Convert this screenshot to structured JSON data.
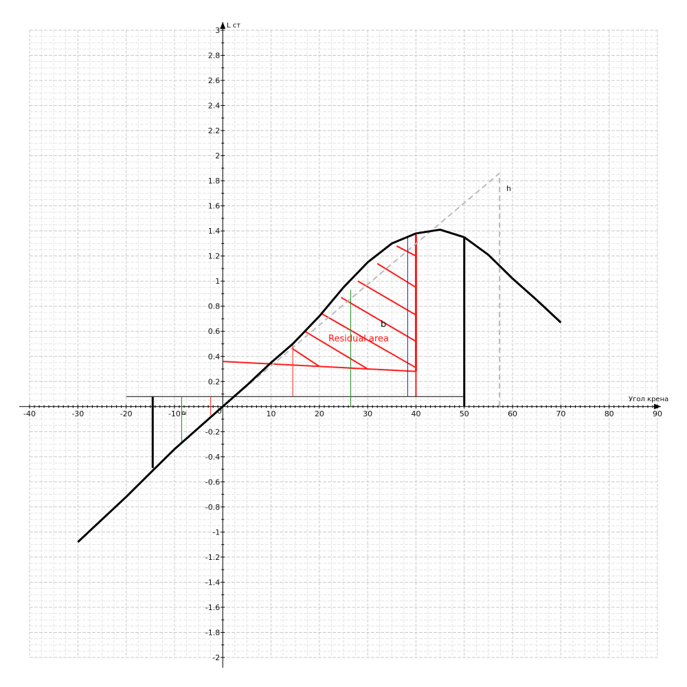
{
  "chart_data": {
    "type": "line",
    "xlabel": "Угол крена",
    "ylabel": "L ст",
    "xlim": [
      -40,
      90
    ],
    "ylim": [
      -2,
      3
    ],
    "x_ticks": [
      -40,
      -30,
      -20,
      -10,
      0,
      10,
      20,
      30,
      40,
      50,
      60,
      70,
      80,
      90
    ],
    "y_ticks": [
      -2,
      -1.8,
      -1.6,
      -1.4,
      -1.2,
      -1,
      -0.8,
      -0.6,
      -0.4,
      -0.2,
      0.2,
      0.4,
      0.6,
      0.8,
      1,
      1.2,
      1.4,
      1.6,
      1.8,
      2,
      2.2,
      2.4,
      2.6,
      2.8,
      3
    ],
    "grid": true,
    "series": [
      {
        "color": "#000000",
        "x": [
          -30,
          -20,
          -14.5,
          -10,
          -5,
          0,
          5,
          10,
          14.5,
          20,
          25,
          30,
          35,
          40,
          45,
          50,
          55,
          60,
          65,
          70
        ],
        "y": [
          -1.08,
          -0.72,
          -0.51,
          -0.34,
          -0.17,
          0.0,
          0.17,
          0.35,
          0.5,
          0.72,
          0.95,
          1.15,
          1.3,
          1.38,
          1.41,
          1.35,
          1.21,
          1.02,
          0.85,
          0.67
        ]
      }
    ],
    "tangent_line": {
      "label": "h",
      "color": "#bbbbbb",
      "x": [
        0,
        57.3
      ],
      "y": [
        0,
        1.86
      ]
    },
    "annotations": {
      "residual_label": "Residual area",
      "b_label": "b",
      "a_label": "a",
      "h_label": "h",
      "zero_label": "0"
    },
    "heel_lines": {
      "equilibrium_line_y": 0.08,
      "dynamic_heel_x": 50,
      "dynamic_heel_y": 1.35,
      "negative_heel_x": -14.5,
      "negative_heel_y": -0.49,
      "static_heel_x": 14.5,
      "red_vertical_x": 40,
      "red_vertical_top_y": 1.37,
      "red_vertical_bottom_y": 0.28,
      "red_line_start": [
        0,
        0.36
      ],
      "green_x": [
        26.5,
        -8.5
      ],
      "blue_x": 38.3,
      "red_small_x": -2.5
    },
    "colors": {
      "curve": "#000000",
      "residual": "#ff1a1a",
      "tangent": "#bbbbbb",
      "green": "#1c8a1c",
      "blue": "#1a1aff"
    }
  }
}
